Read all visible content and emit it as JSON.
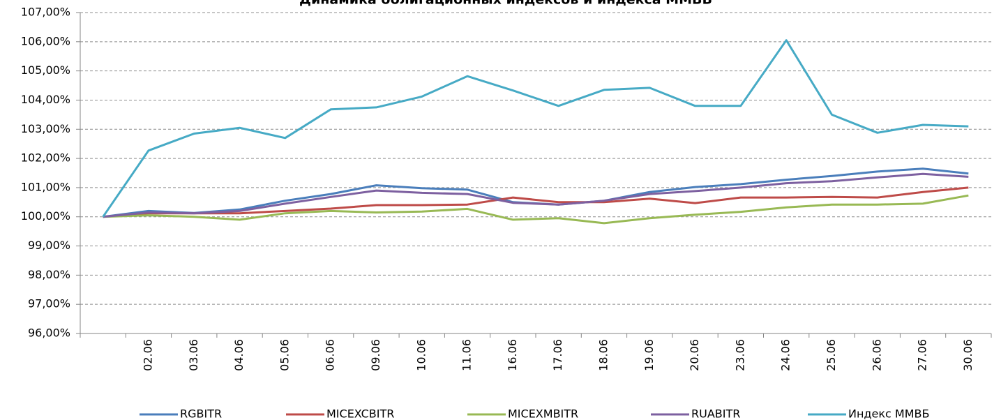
{
  "chart_data": {
    "type": "line",
    "title": "Динамика облигационных индексов и индекса ММВБ",
    "categories": [
      null,
      "02.06",
      "03.06",
      "04.06",
      "05.06",
      "06.06",
      "09.06",
      "10.06",
      "11.06",
      "16.06",
      "17.06",
      "18.06",
      "19.06",
      "20.06",
      "23.06",
      "24.06",
      "25.06",
      "26.06",
      "27.06",
      "30.06"
    ],
    "series": [
      {
        "name": "RGBITR",
        "color": "#4a7ebb",
        "values": [
          100,
          100.2,
          100.13,
          100.25,
          100.55,
          100.78,
          101.08,
          100.98,
          100.93,
          100.5,
          100.42,
          100.55,
          100.85,
          101.02,
          101.12,
          101.27,
          101.4,
          101.55,
          101.65,
          101.48
        ]
      },
      {
        "name": "MICEXCBITR",
        "color": "#be4b48",
        "values": [
          100,
          100.12,
          100.12,
          100.12,
          100.2,
          100.28,
          100.4,
          100.4,
          100.42,
          100.66,
          100.5,
          100.5,
          100.62,
          100.47,
          100.66,
          100.66,
          100.68,
          100.66,
          100.85,
          101.0
        ]
      },
      {
        "name": "MICEXMBITR",
        "color": "#98b954",
        "values": [
          100,
          100.05,
          100.0,
          99.9,
          100.12,
          100.2,
          100.15,
          100.18,
          100.27,
          99.9,
          99.95,
          99.78,
          99.95,
          100.07,
          100.17,
          100.32,
          100.42,
          100.42,
          100.45,
          100.73
        ]
      },
      {
        "name": "RUABITR",
        "color": "#7d60a0",
        "values": [
          100,
          100.15,
          100.12,
          100.2,
          100.45,
          100.68,
          100.9,
          100.82,
          100.78,
          100.48,
          100.42,
          100.55,
          100.78,
          100.88,
          101.0,
          101.15,
          101.22,
          101.35,
          101.47,
          101.37
        ]
      },
      {
        "name": "Индекс ММВБ",
        "color": "#46aac5",
        "values": [
          100,
          102.27,
          102.85,
          103.05,
          102.7,
          103.68,
          103.75,
          104.12,
          104.82,
          104.33,
          103.8,
          104.35,
          104.42,
          103.8,
          103.8,
          106.05,
          103.5,
          102.88,
          103.15,
          103.1
        ]
      }
    ],
    "ylim": [
      96,
      107
    ],
    "yticks": [
      {
        "value": 96,
        "label": "96,00%"
      },
      {
        "value": 97,
        "label": "97,00%"
      },
      {
        "value": 98,
        "label": "98,00%"
      },
      {
        "value": 99,
        "label": "99,00%"
      },
      {
        "value": 100,
        "label": "100,00%"
      },
      {
        "value": 101,
        "label": "101,00%"
      },
      {
        "value": 102,
        "label": "102,00%"
      },
      {
        "value": 103,
        "label": "103,00%"
      },
      {
        "value": 104,
        "label": "104,00%"
      },
      {
        "value": 105,
        "label": "105,00%"
      },
      {
        "value": 106,
        "label": "106,00%"
      },
      {
        "value": 107,
        "label": "107,00%"
      }
    ],
    "grid": true,
    "legend": "bottom"
  }
}
